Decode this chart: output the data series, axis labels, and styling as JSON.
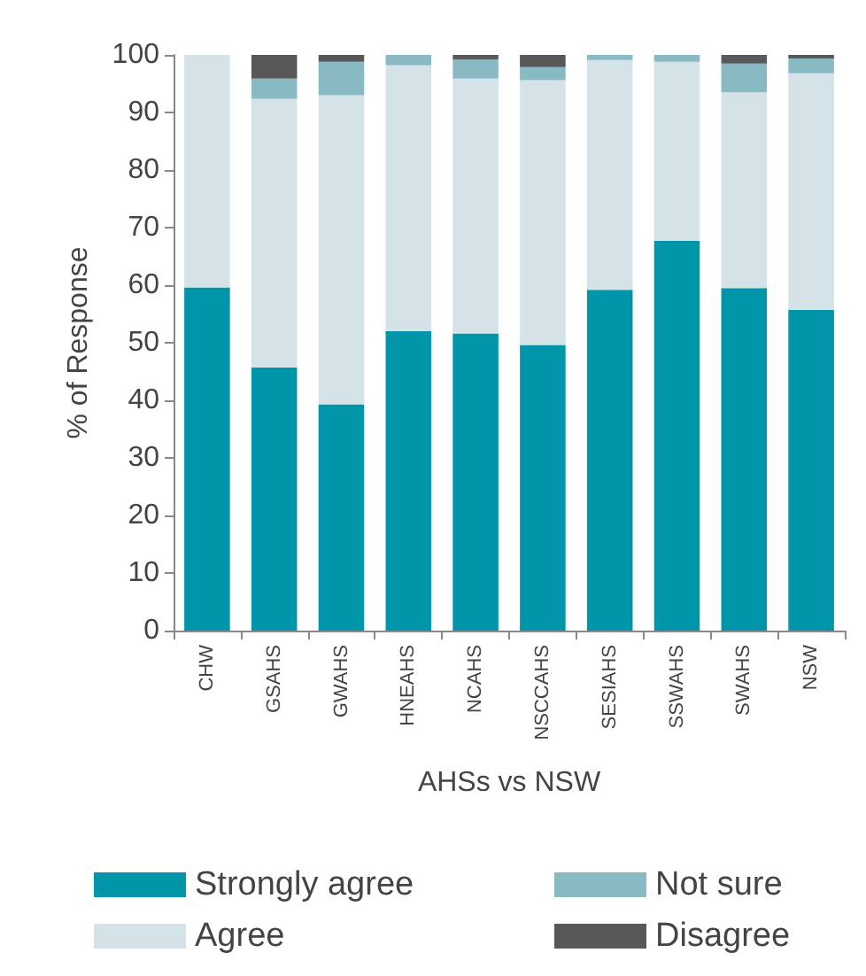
{
  "chart_data": {
    "type": "bar",
    "stacked": true,
    "xlabel": "AHSs vs NSW",
    "ylabel": "% of Response",
    "categories": [
      "CHW",
      "GSAHS",
      "GWAHS",
      "HNEAHS",
      "NCAHS",
      "NSCCAHS",
      "SESIAHS",
      "SSWAHS",
      "SWAHS",
      "NSW"
    ],
    "series": [
      {
        "name": "Strongly agree",
        "color": "#0095a8",
        "values": [
          59.6,
          45.7,
          39.3,
          52,
          51.6,
          49.6,
          59.2,
          67.7,
          59.5,
          55.7
        ]
      },
      {
        "name": "Agree",
        "color": "#d4e3e7",
        "values": [
          40.4,
          46.7,
          53.7,
          46.2,
          44.3,
          46,
          39.9,
          31.1,
          34,
          41.1
        ]
      },
      {
        "name": "Not sure",
        "color": "#89bac4",
        "values": [
          0,
          3.5,
          5.8,
          1.8,
          3.3,
          2.3,
          0.9,
          1.2,
          5,
          2.6
        ]
      },
      {
        "name": "Disagree",
        "color": "#58585a",
        "values": [
          0,
          4.1,
          1.2,
          0,
          0.8,
          2.1,
          0,
          0,
          1.5,
          0.6
        ]
      }
    ],
    "ylim": [
      0,
      100
    ],
    "yticks": [
      0,
      10,
      20,
      30,
      40,
      50,
      60,
      70,
      80,
      90,
      100
    ],
    "grid": false,
    "legend": "bottom"
  }
}
